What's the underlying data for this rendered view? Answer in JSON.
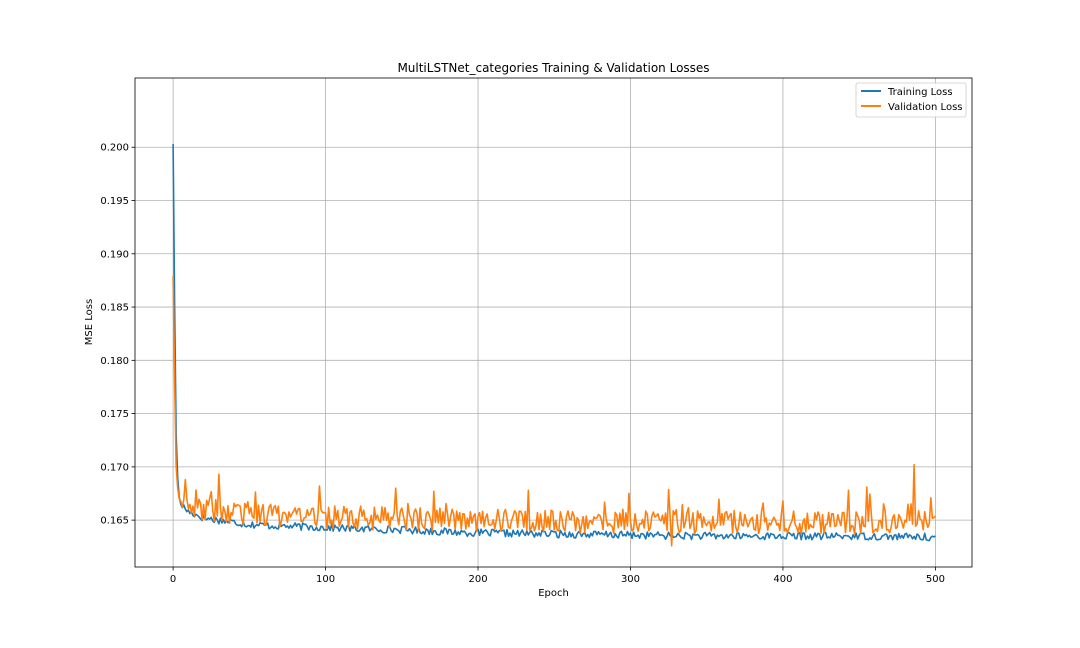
{
  "chart_data": {
    "type": "line",
    "title": "MultiLSTNet_categories Training & Validation Losses",
    "xlabel": "Epoch",
    "ylabel": "MSE Loss",
    "xlim": [
      -25,
      524
    ],
    "ylim": [
      0.1606,
      0.2065
    ],
    "xticks": [
      0,
      100,
      200,
      300,
      400,
      500
    ],
    "xtick_labels": [
      "0",
      "100",
      "200",
      "300",
      "400",
      "500"
    ],
    "yticks": [
      0.165,
      0.17,
      0.175,
      0.18,
      0.185,
      0.19,
      0.195,
      0.2
    ],
    "ytick_labels": [
      "0.165",
      "0.170",
      "0.175",
      "0.180",
      "0.185",
      "0.190",
      "0.195",
      "0.200"
    ],
    "grid": true,
    "legend_position": "top-right",
    "series": [
      {
        "name": "Training Loss",
        "color": "#1f77b4",
        "points": [
          [
            0,
            0.2003
          ],
          [
            1,
            0.185
          ],
          [
            2,
            0.173
          ],
          [
            3,
            0.169
          ],
          [
            4,
            0.1672
          ],
          [
            5,
            0.1665
          ],
          [
            7,
            0.1662
          ],
          [
            10,
            0.1658
          ],
          [
            15,
            0.1655
          ],
          [
            20,
            0.1652
          ],
          [
            30,
            0.165
          ],
          [
            40,
            0.1648
          ],
          [
            50,
            0.1646
          ],
          [
            60,
            0.1645
          ],
          [
            80,
            0.1644
          ],
          [
            100,
            0.1643
          ],
          [
            120,
            0.1642
          ],
          [
            150,
            0.1641
          ],
          [
            180,
            0.1639
          ],
          [
            200,
            0.1638
          ],
          [
            250,
            0.1637
          ],
          [
            300,
            0.1636
          ],
          [
            350,
            0.1635
          ],
          [
            400,
            0.1635
          ],
          [
            450,
            0.1635
          ],
          [
            500,
            0.1634
          ]
        ],
        "noise": 0.00035
      },
      {
        "name": "Validation Loss",
        "color": "#ff7f0e",
        "points": [
          [
            0,
            0.1879
          ],
          [
            1,
            0.178
          ],
          [
            2,
            0.17
          ],
          [
            3,
            0.168
          ],
          [
            4,
            0.167
          ],
          [
            5,
            0.1668
          ],
          [
            8,
            0.1665
          ],
          [
            15,
            0.1662
          ],
          [
            30,
            0.1658
          ],
          [
            60,
            0.1655
          ],
          [
            100,
            0.1653
          ],
          [
            150,
            0.1651
          ],
          [
            200,
            0.165
          ],
          [
            250,
            0.1649
          ],
          [
            300,
            0.1648
          ],
          [
            350,
            0.1648
          ],
          [
            400,
            0.1648
          ],
          [
            450,
            0.1648
          ],
          [
            500,
            0.1648
          ]
        ],
        "noise": 0.0011,
        "spikes": [
          [
            8,
            0.1688
          ],
          [
            30,
            0.1693
          ],
          [
            96,
            0.1682
          ],
          [
            146,
            0.168
          ],
          [
            171,
            0.1677
          ],
          [
            233,
            0.1678
          ],
          [
            327,
            0.1626
          ],
          [
            443,
            0.1678
          ],
          [
            455,
            0.1681
          ],
          [
            486,
            0.1702
          ],
          [
            497,
            0.1671
          ]
        ]
      }
    ]
  }
}
